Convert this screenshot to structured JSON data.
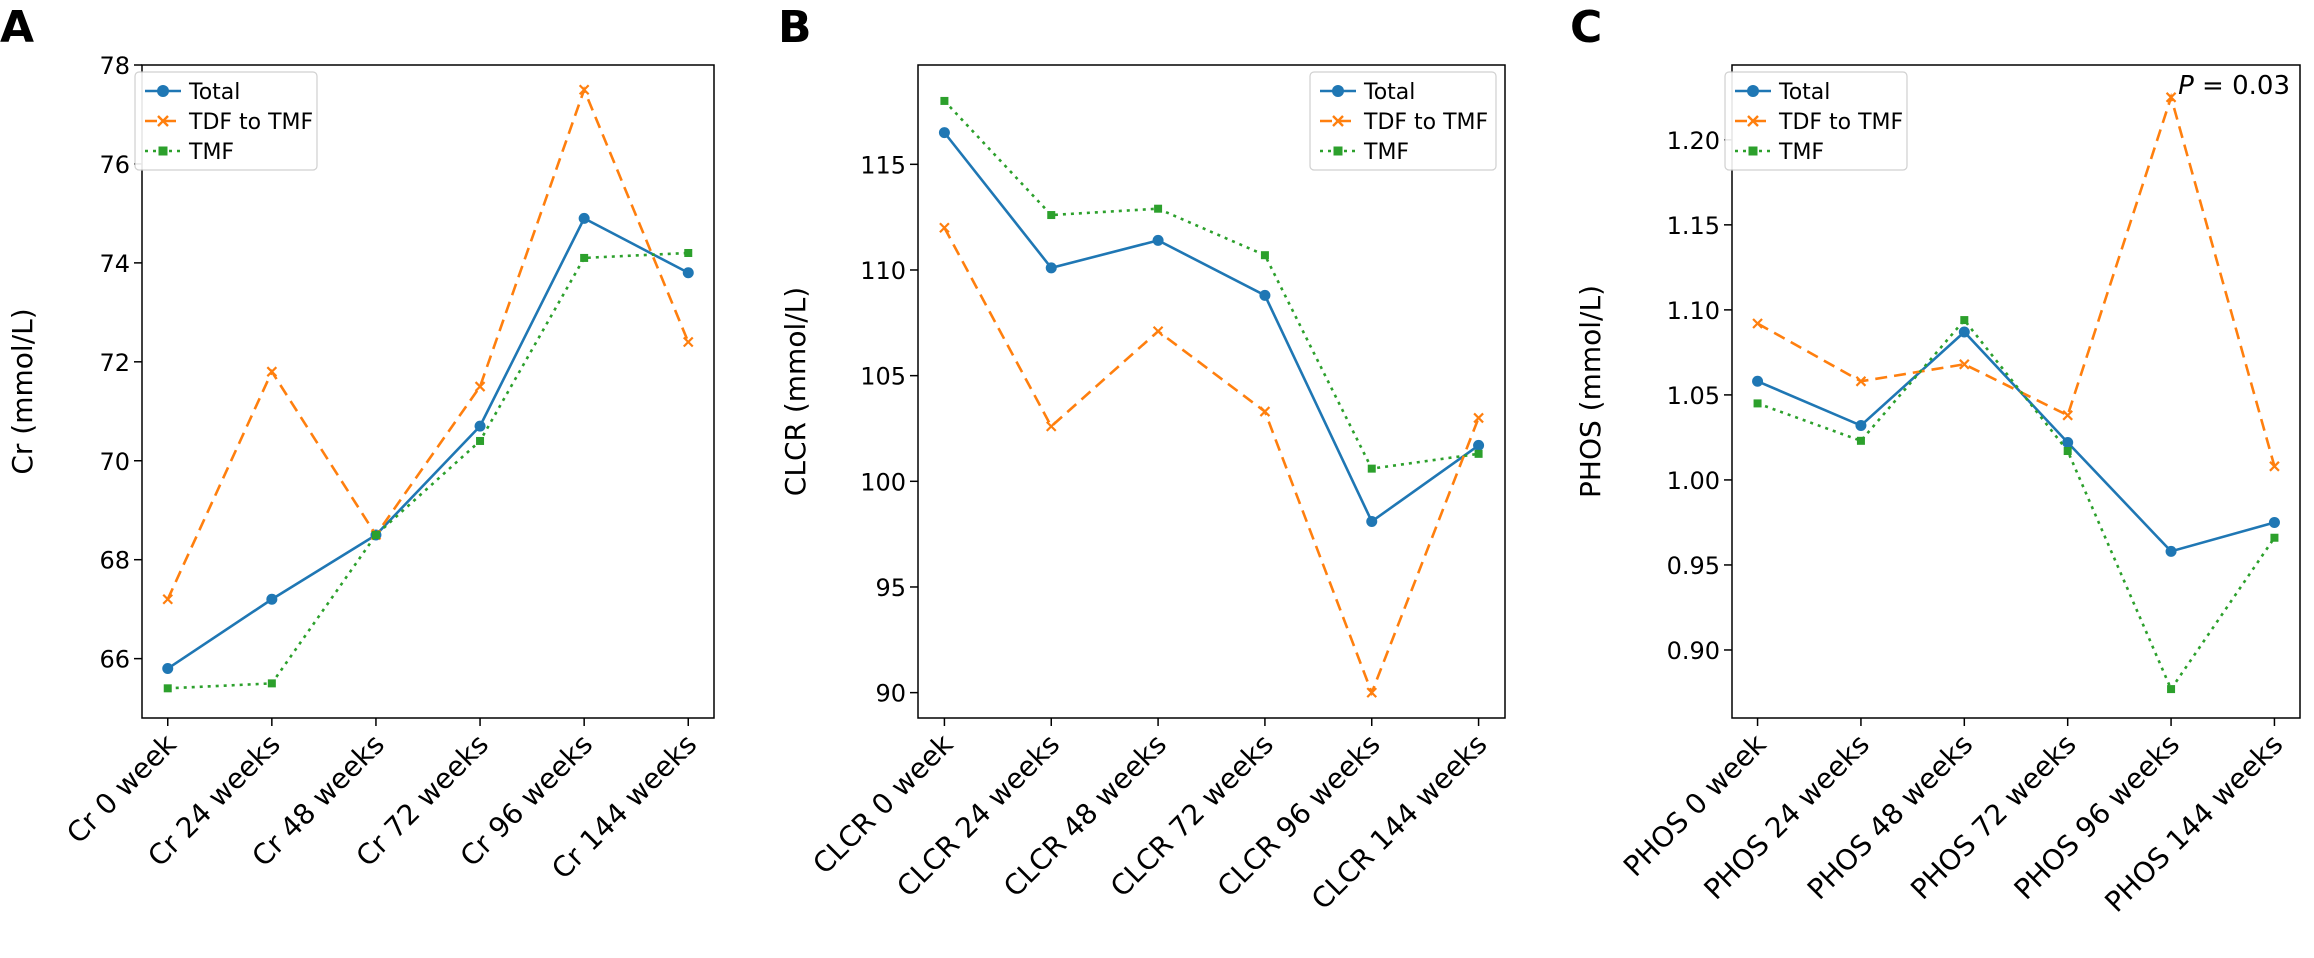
{
  "figure": {
    "colors": {
      "Total": "#1f77b4",
      "TDF to TMF": "#ff7f0e",
      "TMF": "#2ca02c"
    },
    "line_styles": {
      "Total": "solid",
      "TDF to TMF": "dashed",
      "TMF": "dotted"
    },
    "markers": {
      "Total": "circle",
      "TDF to TMF": "x",
      "TMF": "square"
    }
  },
  "chart_data": [
    {
      "type": "line",
      "panel": "A",
      "title": "",
      "xlabel": "",
      "ylabel": "Cr (mmol/L)",
      "categories": [
        "Cr 0 week",
        "Cr 24 weeks",
        "Cr 48 weeks",
        "Cr 72 weeks",
        "Cr 96 weeks",
        "Cr 144 weeks"
      ],
      "ylim": [
        64.8,
        78.0
      ],
      "yticks": [
        66,
        68,
        70,
        72,
        74,
        76,
        78
      ],
      "ytick_labels": [
        "66",
        "68",
        "70",
        "72",
        "74",
        "76",
        "78"
      ],
      "legend": {
        "position": "upper-left",
        "entries": [
          "Total",
          "TDF to TMF",
          "TMF"
        ]
      },
      "annotation": "",
      "series": [
        {
          "name": "Total",
          "values": [
            65.8,
            67.2,
            68.5,
            70.7,
            74.9,
            73.8
          ]
        },
        {
          "name": "TDF to TMF",
          "values": [
            67.2,
            71.8,
            68.5,
            71.5,
            77.5,
            72.4
          ]
        },
        {
          "name": "TMF",
          "values": [
            65.4,
            65.5,
            68.5,
            70.4,
            74.1,
            74.2
          ]
        }
      ]
    },
    {
      "type": "line",
      "panel": "B",
      "title": "",
      "xlabel": "",
      "ylabel": "CLCR (mmol/L)",
      "categories": [
        "CLCR 0 week",
        "CLCR 24 weeks",
        "CLCR 48 weeks",
        "CLCR 72 weeks",
        "CLCR 96 weeks",
        "CLCR 144 weeks"
      ],
      "ylim": [
        88.8,
        119.7
      ],
      "yticks": [
        90,
        95,
        100,
        105,
        110,
        115
      ],
      "ytick_labels": [
        "90",
        "95",
        "100",
        "105",
        "110",
        "115"
      ],
      "legend": {
        "position": "upper-right",
        "entries": [
          "Total",
          "TDF to TMF",
          "TMF"
        ]
      },
      "annotation": "",
      "series": [
        {
          "name": "Total",
          "values": [
            116.5,
            110.1,
            111.4,
            108.8,
            98.1,
            101.7
          ]
        },
        {
          "name": "TDF to TMF",
          "values": [
            112.0,
            102.6,
            107.1,
            103.3,
            90.0,
            103.0
          ]
        },
        {
          "name": "TMF",
          "values": [
            118.0,
            112.6,
            112.9,
            110.7,
            100.6,
            101.3
          ]
        }
      ]
    },
    {
      "type": "line",
      "panel": "C",
      "title": "",
      "xlabel": "",
      "ylabel": "PHOS (mmol/L)",
      "categories": [
        "PHOS 0 week",
        "PHOS 24 weeks",
        "PHOS 48 weeks",
        "PHOS 72 weeks",
        "PHOS 96 weeks",
        "PHOS 144 weeks"
      ],
      "ylim": [
        0.86,
        1.244
      ],
      "yticks": [
        0.9,
        0.95,
        1.0,
        1.05,
        1.1,
        1.15,
        1.2
      ],
      "ytick_labels": [
        "0.90",
        "0.95",
        "1.00",
        "1.05",
        "1.10",
        "1.15",
        "1.20"
      ],
      "legend": {
        "position": "upper-left",
        "entries": [
          "Total",
          "TDF to TMF",
          "TMF"
        ]
      },
      "annotation_italic": "P",
      "annotation_rest": " = 0.03",
      "series": [
        {
          "name": "Total",
          "values": [
            1.058,
            1.032,
            1.087,
            1.022,
            0.958,
            0.975
          ]
        },
        {
          "name": "TDF to TMF",
          "values": [
            1.092,
            1.058,
            1.068,
            1.038,
            1.225,
            1.008
          ]
        },
        {
          "name": "TMF",
          "values": [
            1.045,
            1.023,
            1.094,
            1.017,
            0.877,
            0.966
          ]
        }
      ]
    }
  ]
}
